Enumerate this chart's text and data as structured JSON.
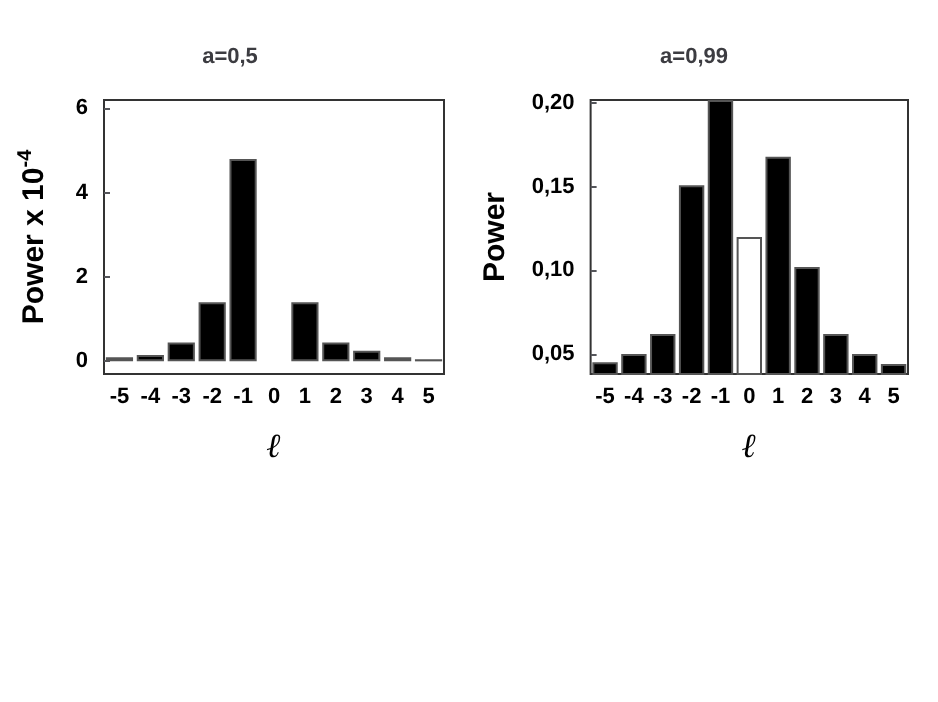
{
  "chart_data": [
    {
      "type": "bar",
      "title": "a=0,5",
      "xlabel": "ℓ",
      "ylabel": "Power x 10$^{-4}$",
      "categories": [
        "-5",
        "-4",
        "-3",
        "-2",
        "-1",
        "0",
        "1",
        "2",
        "3",
        "4",
        "5"
      ],
      "values": [
        0.1,
        0.15,
        0.45,
        1.4,
        4.8,
        null,
        1.4,
        0.45,
        0.25,
        0.1,
        0.05
      ],
      "colors": [
        "#000000",
        "#000000",
        "#000000",
        "#000000",
        "#000000",
        "#ffffff",
        "#000000",
        "#000000",
        "#000000",
        "#000000",
        "#000000"
      ],
      "ylim": [
        -0.3,
        6.2
      ],
      "yticks": [
        0,
        2,
        4,
        6
      ],
      "grid": false
    },
    {
      "type": "bar",
      "title": "a=0,99",
      "xlabel": "ℓ",
      "ylabel": "Power",
      "categories": [
        "-5",
        "-4",
        "-3",
        "-2",
        "-1",
        "0",
        "1",
        "2",
        "3",
        "4",
        "5"
      ],
      "values": [
        0.045,
        0.05,
        0.062,
        0.151,
        0.202,
        0.12,
        0.168,
        0.102,
        0.062,
        0.05,
        0.044
      ],
      "colors": [
        "#000000",
        "#000000",
        "#000000",
        "#000000",
        "#000000",
        "#ffffff",
        "#000000",
        "#000000",
        "#000000",
        "#000000",
        "#000000"
      ],
      "ylim": [
        0.038,
        0.202
      ],
      "yticks": [
        {
          "value": 0.05,
          "label": "0,05"
        },
        {
          "value": 0.1,
          "label": "0,10"
        },
        {
          "value": 0.15,
          "label": "0,15"
        },
        {
          "value": 0.2,
          "label": "0,20"
        }
      ],
      "grid": false
    }
  ]
}
